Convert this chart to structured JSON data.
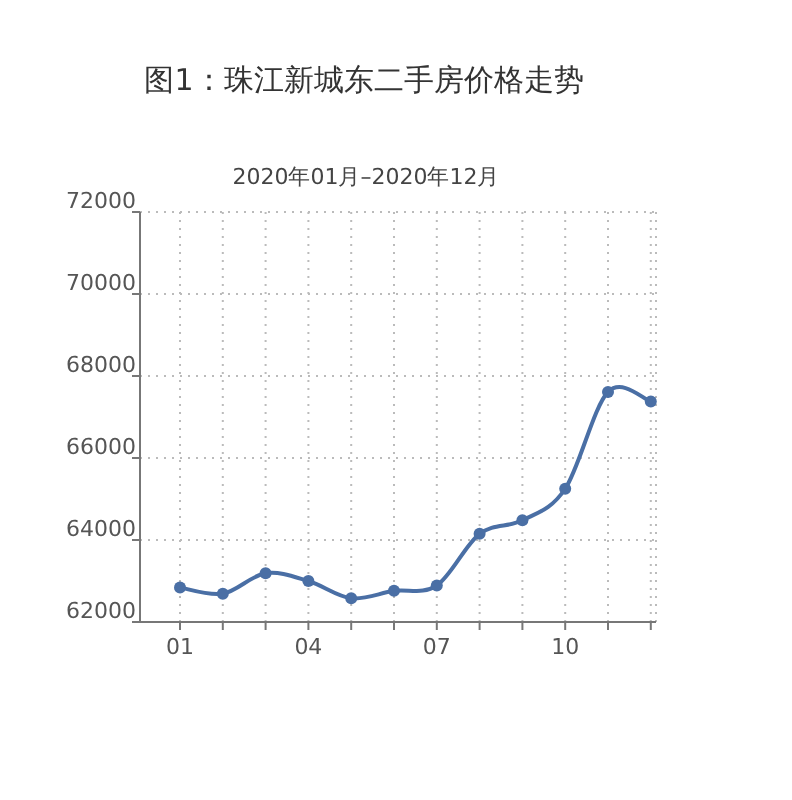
{
  "chart_data": {
    "type": "line",
    "title": "图1：珠江新城东二手房价格走势",
    "subtitle": "2020年01月–2020年12月",
    "categories": [
      "01",
      null,
      null,
      "04",
      null,
      null,
      "07",
      null,
      null,
      "10",
      null,
      null
    ],
    "series": [
      {
        "color": "#4a6fa5",
        "values": [
          62840,
          62690,
          63190,
          63000,
          62580,
          62760,
          62890,
          64150,
          64480,
          65250,
          67610,
          67380
        ]
      }
    ],
    "ylim": [
      62000,
      72000
    ],
    "yticks": [
      62000,
      64000,
      66000,
      68000,
      70000,
      72000
    ],
    "grid": true,
    "marker": "circle",
    "line_style": "solid"
  }
}
